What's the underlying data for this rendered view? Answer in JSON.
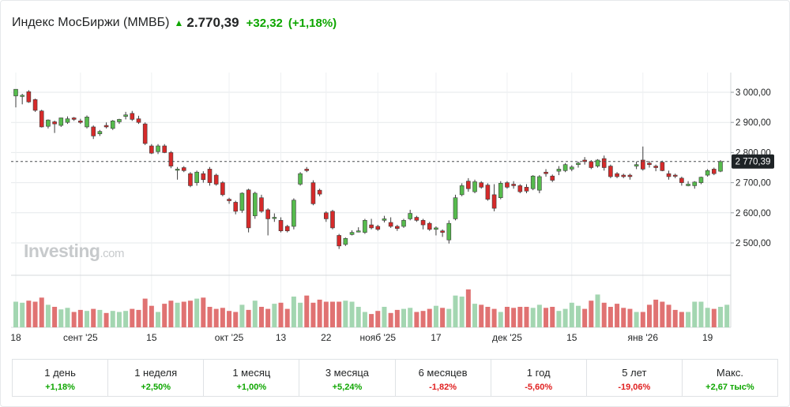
{
  "header": {
    "title": "Индекс МосБиржи (MMBБ)",
    "arrow_icon": "arrow-up-icon",
    "price": "2.770,39",
    "change": "+32,32",
    "change_pct": "(+1,18%)"
  },
  "logo": {
    "text": "Investing",
    "suffix": ".com"
  },
  "colors": {
    "up": "#0ea600",
    "down": "#e02020",
    "candle_up": "#56bb4d",
    "candle_down": "#d62a2a",
    "volume_up": "#a3d6b1",
    "volume_down": "#e07272",
    "grid": "#e6e9eb"
  },
  "chart_data": {
    "type": "candlestick",
    "price_axis": {
      "ylim": [
        2450,
        3030
      ],
      "ticks": [
        3000,
        2900,
        2800,
        2700,
        2600,
        2500
      ],
      "tick_labels": [
        "3 000,00",
        "2 900,00",
        "2 800,00",
        "2 700,00",
        "2 600,00",
        "2 500,00"
      ],
      "current_price": 2770.39,
      "current_price_label": "2 770,39"
    },
    "x_axis": {
      "labels": [
        {
          "text": "18",
          "index": 0
        },
        {
          "text": "сент '25",
          "index": 10
        },
        {
          "text": "15",
          "index": 21
        },
        {
          "text": "окт '25",
          "index": 33
        },
        {
          "text": "13",
          "index": 41
        },
        {
          "text": "22",
          "index": 48
        },
        {
          "text": "нояб '25",
          "index": 56
        },
        {
          "text": "17",
          "index": 65
        },
        {
          "text": "дек '25",
          "index": 76
        },
        {
          "text": "15",
          "index": 86
        },
        {
          "text": "янв '26",
          "index": 97
        },
        {
          "text": "19",
          "index": 107
        }
      ]
    },
    "candles": [
      {
        "o": 2988,
        "h": 3010,
        "l": 2950,
        "c": 3010
      },
      {
        "o": 2990,
        "h": 2995,
        "l": 2960,
        "c": 2990
      },
      {
        "o": 3002,
        "h": 3007,
        "l": 2965,
        "c": 2968
      },
      {
        "o": 2976,
        "h": 2979,
        "l": 2935,
        "c": 2940
      },
      {
        "o": 2938,
        "h": 2942,
        "l": 2883,
        "c": 2885
      },
      {
        "o": 2887,
        "h": 2910,
        "l": 2880,
        "c": 2908
      },
      {
        "o": 2902,
        "h": 2906,
        "l": 2865,
        "c": 2895
      },
      {
        "o": 2890,
        "h": 2916,
        "l": 2885,
        "c": 2915
      },
      {
        "o": 2900,
        "h": 2920,
        "l": 2895,
        "c": 2912
      },
      {
        "o": 2915,
        "h": 2918,
        "l": 2905,
        "c": 2910
      },
      {
        "o": 2905,
        "h": 2912,
        "l": 2895,
        "c": 2900
      },
      {
        "o": 2885,
        "h": 2923,
        "l": 2880,
        "c": 2918
      },
      {
        "o": 2885,
        "h": 2890,
        "l": 2845,
        "c": 2855
      },
      {
        "o": 2862,
        "h": 2875,
        "l": 2855,
        "c": 2870
      },
      {
        "o": 2890,
        "h": 2900,
        "l": 2880,
        "c": 2885
      },
      {
        "o": 2880,
        "h": 2908,
        "l": 2875,
        "c": 2905
      },
      {
        "o": 2902,
        "h": 2912,
        "l": 2895,
        "c": 2910
      },
      {
        "o": 2920,
        "h": 2935,
        "l": 2910,
        "c": 2925
      },
      {
        "o": 2930,
        "h": 2938,
        "l": 2905,
        "c": 2910
      },
      {
        "o": 2912,
        "h": 2922,
        "l": 2895,
        "c": 2900
      },
      {
        "o": 2895,
        "h": 2900,
        "l": 2825,
        "c": 2830
      },
      {
        "o": 2822,
        "h": 2828,
        "l": 2795,
        "c": 2798
      },
      {
        "o": 2803,
        "h": 2828,
        "l": 2795,
        "c": 2822
      },
      {
        "o": 2822,
        "h": 2828,
        "l": 2798,
        "c": 2800
      },
      {
        "o": 2800,
        "h": 2805,
        "l": 2748,
        "c": 2755
      },
      {
        "o": 2745,
        "h": 2752,
        "l": 2710,
        "c": 2745
      },
      {
        "o": 2750,
        "h": 2755,
        "l": 2735,
        "c": 2740
      },
      {
        "o": 2730,
        "h": 2735,
        "l": 2685,
        "c": 2690
      },
      {
        "o": 2700,
        "h": 2740,
        "l": 2690,
        "c": 2735
      },
      {
        "o": 2730,
        "h": 2738,
        "l": 2700,
        "c": 2710
      },
      {
        "o": 2745,
        "h": 2752,
        "l": 2690,
        "c": 2700
      },
      {
        "o": 2725,
        "h": 2730,
        "l": 2690,
        "c": 2695
      },
      {
        "o": 2700,
        "h": 2705,
        "l": 2655,
        "c": 2660
      },
      {
        "o": 2645,
        "h": 2650,
        "l": 2630,
        "c": 2640
      },
      {
        "o": 2635,
        "h": 2640,
        "l": 2595,
        "c": 2605
      },
      {
        "o": 2608,
        "h": 2668,
        "l": 2600,
        "c": 2665
      },
      {
        "o": 2676,
        "h": 2680,
        "l": 2535,
        "c": 2550
      },
      {
        "o": 2590,
        "h": 2670,
        "l": 2580,
        "c": 2665
      },
      {
        "o": 2650,
        "h": 2660,
        "l": 2600,
        "c": 2605
      },
      {
        "o": 2610,
        "h": 2615,
        "l": 2525,
        "c": 2580
      },
      {
        "o": 2585,
        "h": 2598,
        "l": 2570,
        "c": 2585
      },
      {
        "o": 2575,
        "h": 2585,
        "l": 2535,
        "c": 2540
      },
      {
        "o": 2555,
        "h": 2560,
        "l": 2535,
        "c": 2540
      },
      {
        "o": 2555,
        "h": 2648,
        "l": 2545,
        "c": 2642
      },
      {
        "o": 2695,
        "h": 2735,
        "l": 2690,
        "c": 2730
      },
      {
        "o": 2745,
        "h": 2752,
        "l": 2735,
        "c": 2740
      },
      {
        "o": 2700,
        "h": 2708,
        "l": 2625,
        "c": 2630
      },
      {
        "o": 2675,
        "h": 2680,
        "l": 2655,
        "c": 2662
      },
      {
        "o": 2600,
        "h": 2605,
        "l": 2570,
        "c": 2580
      },
      {
        "o": 2605,
        "h": 2610,
        "l": 2545,
        "c": 2550
      },
      {
        "o": 2525,
        "h": 2530,
        "l": 2480,
        "c": 2490
      },
      {
        "o": 2495,
        "h": 2518,
        "l": 2490,
        "c": 2515
      },
      {
        "o": 2528,
        "h": 2542,
        "l": 2525,
        "c": 2535
      },
      {
        "o": 2538,
        "h": 2552,
        "l": 2535,
        "c": 2540
      },
      {
        "o": 2535,
        "h": 2580,
        "l": 2530,
        "c": 2575
      },
      {
        "o": 2560,
        "h": 2580,
        "l": 2545,
        "c": 2550
      },
      {
        "o": 2555,
        "h": 2560,
        "l": 2540,
        "c": 2545
      },
      {
        "o": 2575,
        "h": 2590,
        "l": 2568,
        "c": 2580
      },
      {
        "o": 2568,
        "h": 2585,
        "l": 2550,
        "c": 2555
      },
      {
        "o": 2555,
        "h": 2560,
        "l": 2540,
        "c": 2548
      },
      {
        "o": 2555,
        "h": 2580,
        "l": 2550,
        "c": 2575
      },
      {
        "o": 2580,
        "h": 2610,
        "l": 2575,
        "c": 2598
      },
      {
        "o": 2585,
        "h": 2590,
        "l": 2570,
        "c": 2575
      },
      {
        "o": 2575,
        "h": 2580,
        "l": 2545,
        "c": 2560
      },
      {
        "o": 2565,
        "h": 2570,
        "l": 2540,
        "c": 2545
      },
      {
        "o": 2545,
        "h": 2555,
        "l": 2525,
        "c": 2550
      },
      {
        "o": 2540,
        "h": 2545,
        "l": 2520,
        "c": 2535
      },
      {
        "o": 2510,
        "h": 2575,
        "l": 2498,
        "c": 2565
      },
      {
        "o": 2580,
        "h": 2660,
        "l": 2575,
        "c": 2650
      },
      {
        "o": 2660,
        "h": 2698,
        "l": 2655,
        "c": 2690
      },
      {
        "o": 2705,
        "h": 2715,
        "l": 2670,
        "c": 2680
      },
      {
        "o": 2670,
        "h": 2710,
        "l": 2665,
        "c": 2703
      },
      {
        "o": 2700,
        "h": 2705,
        "l": 2680,
        "c": 2685
      },
      {
        "o": 2692,
        "h": 2698,
        "l": 2640,
        "c": 2645
      },
      {
        "o": 2660,
        "h": 2695,
        "l": 2605,
        "c": 2615
      },
      {
        "o": 2650,
        "h": 2705,
        "l": 2645,
        "c": 2698
      },
      {
        "o": 2700,
        "h": 2705,
        "l": 2680,
        "c": 2685
      },
      {
        "o": 2695,
        "h": 2705,
        "l": 2680,
        "c": 2690
      },
      {
        "o": 2690,
        "h": 2695,
        "l": 2665,
        "c": 2670
      },
      {
        "o": 2685,
        "h": 2695,
        "l": 2665,
        "c": 2672
      },
      {
        "o": 2680,
        "h": 2725,
        "l": 2675,
        "c": 2722
      },
      {
        "o": 2675,
        "h": 2725,
        "l": 2665,
        "c": 2720
      },
      {
        "o": 2735,
        "h": 2745,
        "l": 2720,
        "c": 2730
      },
      {
        "o": 2722,
        "h": 2727,
        "l": 2702,
        "c": 2708
      },
      {
        "o": 2738,
        "h": 2755,
        "l": 2725,
        "c": 2745
      },
      {
        "o": 2740,
        "h": 2765,
        "l": 2735,
        "c": 2760
      },
      {
        "o": 2745,
        "h": 2758,
        "l": 2738,
        "c": 2752
      },
      {
        "o": 2760,
        "h": 2770,
        "l": 2750,
        "c": 2765
      },
      {
        "o": 2775,
        "h": 2785,
        "l": 2760,
        "c": 2770
      },
      {
        "o": 2770,
        "h": 2775,
        "l": 2745,
        "c": 2750
      },
      {
        "o": 2755,
        "h": 2778,
        "l": 2750,
        "c": 2775
      },
      {
        "o": 2780,
        "h": 2790,
        "l": 2740,
        "c": 2750
      },
      {
        "o": 2755,
        "h": 2760,
        "l": 2715,
        "c": 2720
      },
      {
        "o": 2730,
        "h": 2735,
        "l": 2715,
        "c": 2720
      },
      {
        "o": 2725,
        "h": 2730,
        "l": 2715,
        "c": 2720
      },
      {
        "o": 2725,
        "h": 2730,
        "l": 2710,
        "c": 2720
      },
      {
        "o": 2755,
        "h": 2770,
        "l": 2745,
        "c": 2760
      },
      {
        "o": 2775,
        "h": 2820,
        "l": 2740,
        "c": 2745
      },
      {
        "o": 2765,
        "h": 2772,
        "l": 2750,
        "c": 2760
      },
      {
        "o": 2755,
        "h": 2760,
        "l": 2738,
        "c": 2750
      },
      {
        "o": 2768,
        "h": 2773,
        "l": 2738,
        "c": 2740
      },
      {
        "o": 2730,
        "h": 2740,
        "l": 2710,
        "c": 2720
      },
      {
        "o": 2725,
        "h": 2730,
        "l": 2715,
        "c": 2722
      },
      {
        "o": 2715,
        "h": 2720,
        "l": 2690,
        "c": 2700
      },
      {
        "o": 2690,
        "h": 2705,
        "l": 2688,
        "c": 2695
      },
      {
        "o": 2690,
        "h": 2705,
        "l": 2680,
        "c": 2702
      },
      {
        "o": 2700,
        "h": 2720,
        "l": 2695,
        "c": 2718
      },
      {
        "o": 2725,
        "h": 2745,
        "l": 2720,
        "c": 2740
      },
      {
        "o": 2745,
        "h": 2750,
        "l": 2725,
        "c": 2730
      },
      {
        "o": 2738,
        "h": 2775,
        "l": 2735,
        "c": 2770
      }
    ],
    "volume": {
      "max": 100,
      "values": [
        50,
        48,
        52,
        50,
        58,
        44,
        40,
        35,
        38,
        30,
        34,
        32,
        36,
        34,
        28,
        32,
        30,
        32,
        36,
        34,
        56,
        42,
        30,
        46,
        52,
        48,
        50,
        52,
        56,
        58,
        40,
        36,
        38,
        32,
        30,
        44,
        34,
        52,
        40,
        36,
        46,
        48,
        36,
        60,
        48,
        62,
        48,
        54,
        50,
        50,
        50,
        52,
        50,
        40,
        30,
        26,
        32,
        40,
        28,
        34,
        36,
        38,
        30,
        32,
        36,
        42,
        38,
        36,
        62,
        60,
        74,
        46,
        44,
        40,
        36,
        30,
        40,
        38,
        40,
        40,
        38,
        44,
        38,
        40,
        32,
        36,
        48,
        42,
        36,
        52,
        64,
        48,
        40,
        46,
        38,
        36,
        30,
        30,
        44,
        54,
        50,
        44,
        34,
        30,
        30,
        50,
        50,
        38,
        36,
        40,
        44
      ]
    }
  },
  "periods": [
    {
      "label": "1 день",
      "value": "+1,18%",
      "dir": "up"
    },
    {
      "label": "1 неделя",
      "value": "+2,50%",
      "dir": "up"
    },
    {
      "label": "1 месяц",
      "value": "+1,00%",
      "dir": "up"
    },
    {
      "label": "3 месяца",
      "value": "+5,24%",
      "dir": "up"
    },
    {
      "label": "6 месяцев",
      "value": "-1,82%",
      "dir": "down"
    },
    {
      "label": "1 год",
      "value": "-5,60%",
      "dir": "down"
    },
    {
      "label": "5 лет",
      "value": "-19,06%",
      "dir": "down"
    },
    {
      "label": "Макс.",
      "value": "+2,67 тыс%",
      "dir": "up"
    }
  ]
}
